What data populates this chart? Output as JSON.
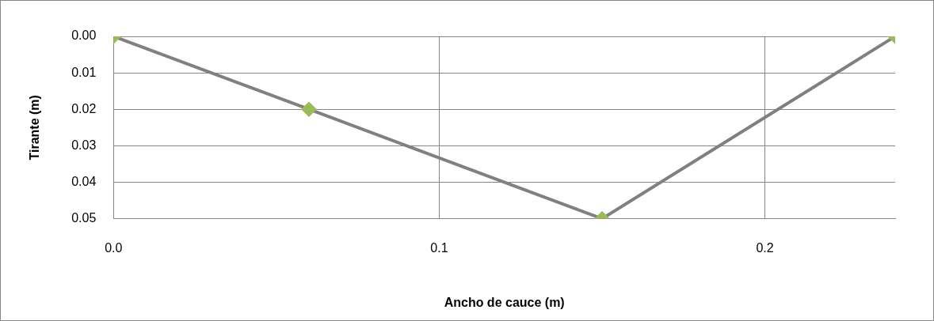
{
  "chart_data": {
    "type": "line",
    "xlabel": "Ancho de cauce (m)",
    "ylabel": "Tirante (m)",
    "x": [
      0,
      0.06,
      0.15,
      0.24
    ],
    "series": [
      {
        "color": "#808080",
        "colors": [
          "#9bbb59",
          "#9bbb59",
          "#9bbb59",
          "#9bbb59"
        ],
        "values": [
          0,
          0.02,
          0.05,
          0
        ]
      }
    ],
    "xlim": [
      0,
      0.24
    ],
    "xticks": [
      {
        "value": 0,
        "label": "0.0"
      },
      0.1,
      0.2
    ],
    "ylim": [
      0.05,
      0
    ],
    "yticks": [
      {
        "value": 0,
        "label": "0.00"
      },
      {
        "value": 0.01,
        "label": "0.01"
      },
      {
        "value": 0.02,
        "label": "0.02"
      },
      {
        "value": 0.03,
        "label": "0.03"
      },
      {
        "value": 0.04,
        "label": "0.04"
      },
      {
        "value": 0.05,
        "label": "0.05"
      }
    ],
    "grid": true,
    "legend": false,
    "marker": "diamond",
    "line_style": "solid"
  }
}
